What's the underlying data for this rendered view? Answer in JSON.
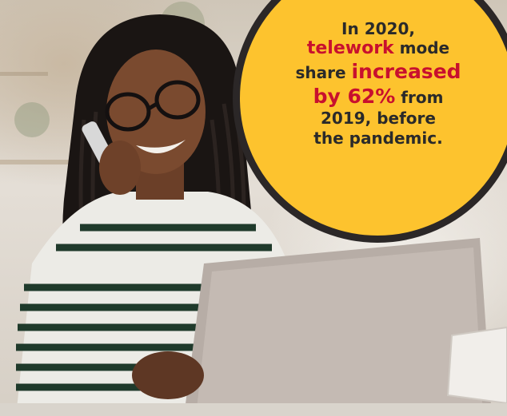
{
  "callout": {
    "segments": {
      "l1": "In 2020,",
      "l2_em": "telework",
      "l2_rest": " mode",
      "l3_pre": "share ",
      "l3_em": "increased",
      "l4_em": "by 62%",
      "l4_rest": " from",
      "l5": "2019, before",
      "l6": "the pandemic."
    },
    "colors": {
      "fill": "#fdc32e",
      "border": "#2b2727",
      "text": "#2a2a2a",
      "highlight": "#c8102e"
    }
  }
}
